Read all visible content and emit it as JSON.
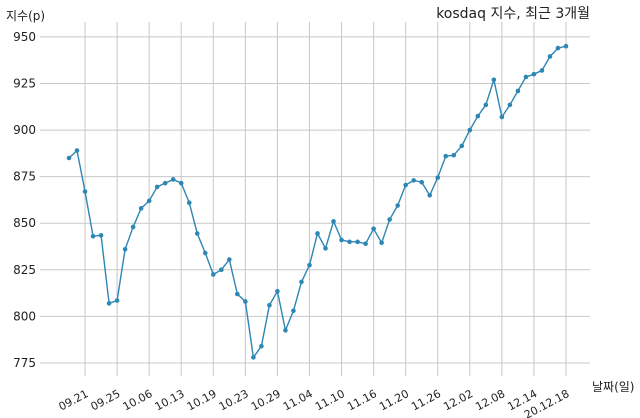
{
  "chart_data": {
    "type": "line",
    "title": "kosdaq 지수, 최근 3개월",
    "xlabel": "날짜(일)",
    "ylabel": "지수(p)",
    "ylim": [
      768,
      958
    ],
    "yticks": [
      775,
      800,
      825,
      850,
      875,
      900,
      925,
      950
    ],
    "grid": true,
    "color": "#2e86b3",
    "xtick_labels": [
      "09.21",
      "09.25",
      "10.06",
      "10.13",
      "10.19",
      "10.23",
      "10.29",
      "11.04",
      "11.10",
      "11.16",
      "11.20",
      "11.26",
      "12.02",
      "12.08",
      "12.14",
      "20.12.18"
    ],
    "series": [
      {
        "values": [
          885,
          889,
          867,
          843,
          843.5,
          807,
          808.5,
          836,
          848,
          858,
          862,
          869.5,
          871.5,
          873.5,
          871.5,
          861,
          844.5,
          834,
          822.5,
          825,
          830.5,
          812,
          808,
          778,
          784,
          806,
          813.5,
          792.5,
          803,
          818.5,
          827.5,
          844.5,
          836.5,
          851,
          841,
          840,
          840,
          839,
          847,
          839.5,
          852,
          859.5,
          870.5,
          873,
          872,
          865,
          874.5,
          886,
          886.5,
          891.5,
          900,
          907.5,
          913.5,
          927,
          907,
          913.5,
          921,
          928.5,
          930,
          932,
          939.5,
          944,
          945
        ]
      }
    ]
  }
}
